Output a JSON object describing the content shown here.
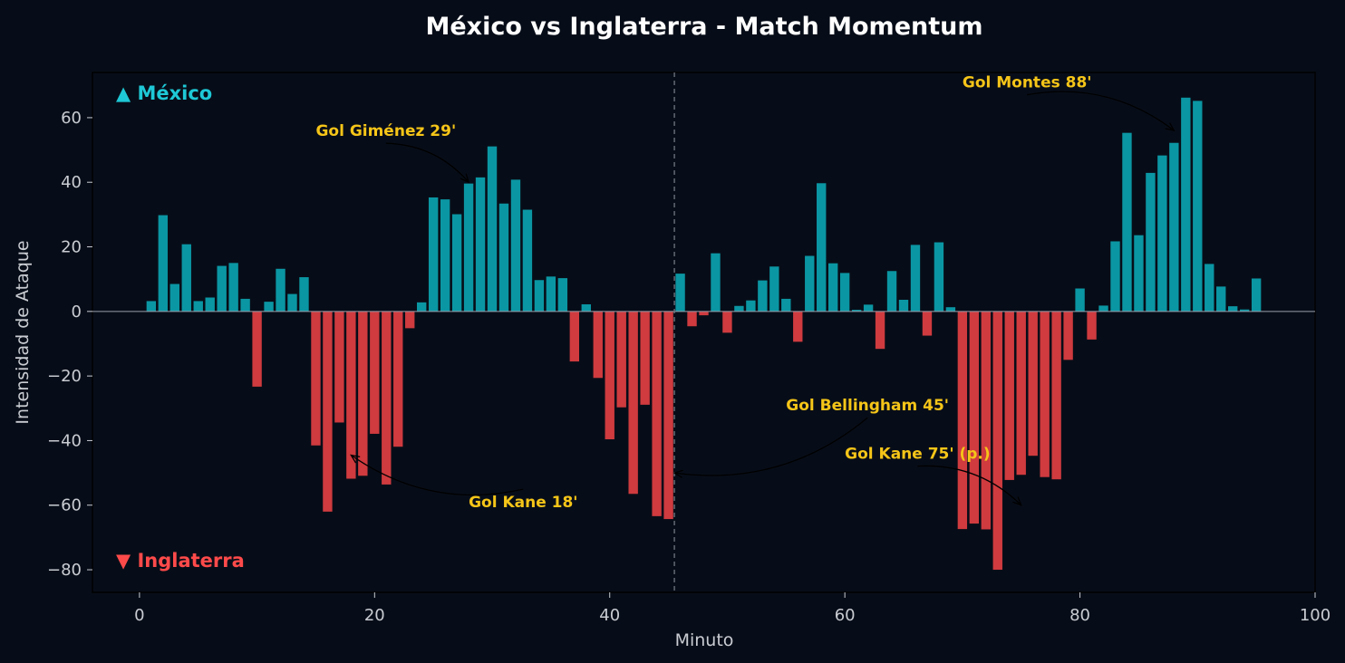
{
  "chart_data": {
    "type": "bar",
    "title": "México vs Inglaterra - Match Momentum",
    "xlabel": "Minuto",
    "ylabel": "Intensidad de Ataque",
    "xlim": [
      -4,
      100
    ],
    "ylim": [
      -87,
      74
    ],
    "xticks": [
      0,
      20,
      40,
      60,
      80,
      100
    ],
    "yticks": [
      -80,
      -60,
      -40,
      -20,
      0,
      20,
      40,
      60
    ],
    "halftime_minute": 45.5,
    "colors": {
      "positive": "#0b96a3",
      "negative": "#cf3b3f",
      "annotation": "#f5c518",
      "background": "#070d18"
    },
    "team_labels": [
      {
        "text": "▲ México",
        "color": "#1ec8d6",
        "position": "top-left"
      },
      {
        "text": "▼ Inglaterra",
        "color": "#ff4a4a",
        "position": "bottom-left"
      }
    ],
    "bars": [
      [
        1,
        3.2
      ],
      [
        2,
        29.8
      ],
      [
        3,
        8.5
      ],
      [
        4,
        20.8
      ],
      [
        5,
        3.2
      ],
      [
        6,
        4.3
      ],
      [
        7,
        14.1
      ],
      [
        8,
        15
      ],
      [
        9,
        3.9
      ],
      [
        10,
        -23.3
      ],
      [
        11,
        3
      ],
      [
        12,
        13.2
      ],
      [
        13,
        5.4
      ],
      [
        14,
        10.6
      ],
      [
        15,
        -41.5
      ],
      [
        16,
        -62
      ],
      [
        17,
        -34.4
      ],
      [
        18,
        -51.8
      ],
      [
        19,
        -50.9
      ],
      [
        20,
        -37.9
      ],
      [
        21,
        -53.6
      ],
      [
        22,
        -41.9
      ],
      [
        23,
        -5.2
      ],
      [
        24,
        2.8
      ],
      [
        25,
        35.3
      ],
      [
        26,
        34.7
      ],
      [
        27,
        30.1
      ],
      [
        28,
        39.6
      ],
      [
        29,
        41.5
      ],
      [
        30,
        51.1
      ],
      [
        31,
        33.4
      ],
      [
        32,
        40.8
      ],
      [
        33,
        31.5
      ],
      [
        34,
        9.7
      ],
      [
        35,
        10.8
      ],
      [
        36,
        10.3
      ],
      [
        37,
        -15.5
      ],
      [
        38,
        2.2
      ],
      [
        39,
        -20.6
      ],
      [
        40,
        -39.6
      ],
      [
        41,
        -29.7
      ],
      [
        42,
        -56.5
      ],
      [
        43,
        -28.9
      ],
      [
        44,
        -63.4
      ],
      [
        45,
        -64.3
      ],
      [
        46,
        11.7
      ],
      [
        47,
        -4.6
      ],
      [
        48,
        -1.2
      ],
      [
        49,
        18
      ],
      [
        50,
        -6.6
      ],
      [
        51,
        1.7
      ],
      [
        52,
        3.4
      ],
      [
        53,
        9.6
      ],
      [
        54,
        13.9
      ],
      [
        55,
        3.9
      ],
      [
        56,
        -9.4
      ],
      [
        57,
        17.2
      ],
      [
        58,
        39.7
      ],
      [
        59,
        14.9
      ],
      [
        60,
        11.9
      ],
      [
        61,
        0.5
      ],
      [
        62,
        2.1
      ],
      [
        63,
        -11.6
      ],
      [
        64,
        12.5
      ],
      [
        65,
        3.6
      ],
      [
        66,
        20.6
      ],
      [
        67,
        -7.5
      ],
      [
        68,
        21.4
      ],
      [
        69,
        1.3
      ],
      [
        70,
        -67.4
      ],
      [
        71,
        -65.7
      ],
      [
        72,
        -67.5
      ],
      [
        73,
        -80
      ],
      [
        74,
        -52.2
      ],
      [
        75,
        -50.6
      ],
      [
        76,
        -44.7
      ],
      [
        77,
        -51.3
      ],
      [
        78,
        -52
      ],
      [
        79,
        -15
      ],
      [
        80,
        7.1
      ],
      [
        81,
        -8.7
      ],
      [
        82,
        1.8
      ],
      [
        83,
        21.7
      ],
      [
        84,
        55.3
      ],
      [
        85,
        23.6
      ],
      [
        86,
        42.9
      ],
      [
        87,
        48.3
      ],
      [
        88,
        52.2
      ],
      [
        89,
        66.2
      ],
      [
        90,
        65.2
      ],
      [
        91,
        14.7
      ],
      [
        92,
        7.7
      ],
      [
        93,
        1.6
      ],
      [
        94,
        0.6
      ],
      [
        95,
        10.2
      ]
    ],
    "annotations": [
      {
        "text": "Gol Giménez 29'",
        "text_at": [
          15,
          56
        ],
        "point": [
          28,
          40
        ]
      },
      {
        "text": "Gol Kane 18'",
        "text_at": [
          28,
          -59
        ],
        "point": [
          18,
          -44.5
        ]
      },
      {
        "text": "Gol Bellingham 45'",
        "text_at": [
          55,
          -29
        ],
        "point": [
          45.5,
          -50
        ]
      },
      {
        "text": "Gol Kane 75' (p.)",
        "text_at": [
          60,
          -44
        ],
        "point": [
          75,
          -60
        ]
      },
      {
        "text": "Gol Montes 88'",
        "text_at": [
          70,
          71
        ],
        "point": [
          88,
          56
        ]
      }
    ]
  }
}
